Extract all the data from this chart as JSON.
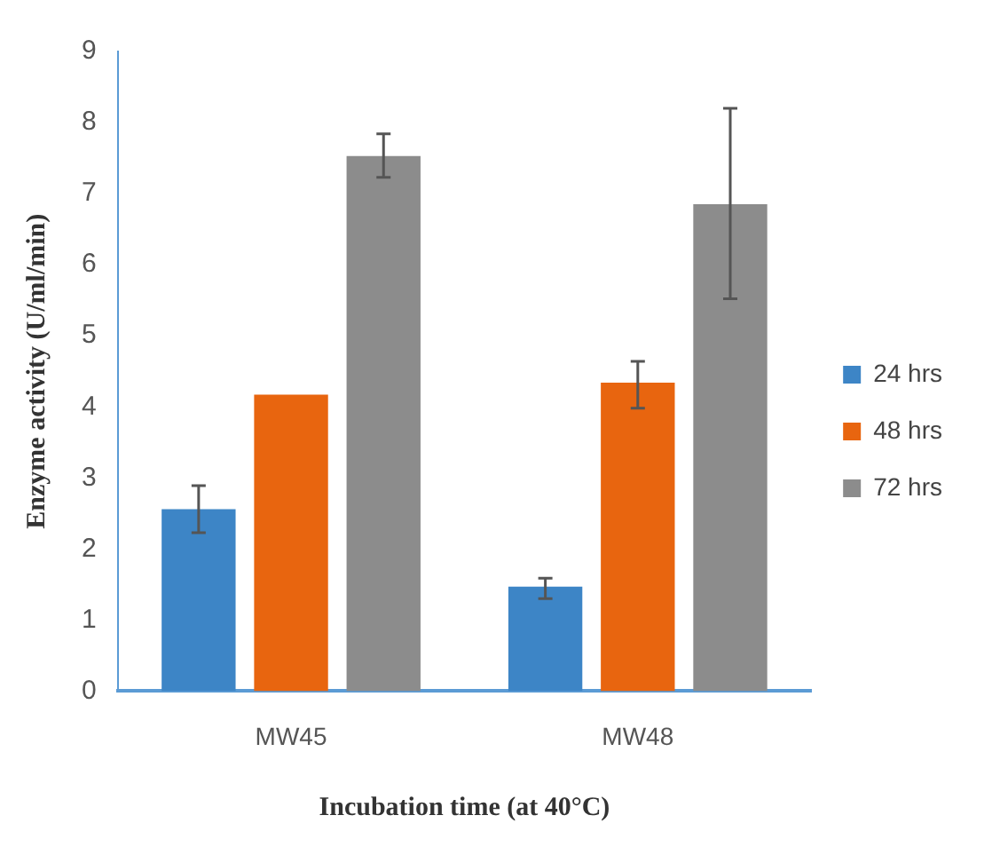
{
  "chart_data": {
    "type": "bar",
    "xlabel": "Incubation time (at 40°C)",
    "ylabel": "Enzyme activity (U/ml/min)",
    "categories": [
      "MW45",
      "MW48"
    ],
    "series": [
      {
        "name": "24 hrs",
        "color": "#3d85c6",
        "values": [
          2.56,
          1.47
        ],
        "errors": [
          [
            2.23,
            2.89
          ],
          [
            1.3,
            1.59
          ]
        ]
      },
      {
        "name": "48 hrs",
        "color": "#e8650f",
        "values": [
          4.17,
          4.34
        ],
        "errors": [
          null,
          [
            3.98,
            4.64
          ]
        ]
      },
      {
        "name": "72 hrs",
        "color": "#8c8c8c",
        "values": [
          7.53,
          6.85
        ],
        "errors": [
          [
            7.23,
            7.84
          ],
          [
            5.52,
            8.2
          ]
        ]
      }
    ],
    "ylim": [
      0,
      9
    ],
    "yticks": [
      0,
      1,
      2,
      3,
      4,
      5,
      6,
      7,
      8,
      9
    ],
    "grid": false,
    "legend": "right"
  }
}
